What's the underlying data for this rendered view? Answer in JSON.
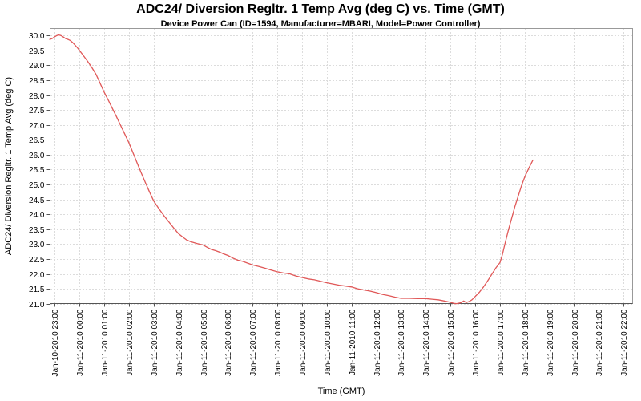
{
  "chart": {
    "title": "ADC24/ Diversion Regltr. 1 Temp Avg (deg C) vs. Time (GMT)",
    "subtitle": "Device Power Can (ID=1594, Manufacturer=MBARI, Model=Power Controller)",
    "y_axis_label": "ADC24/ Diversion Regltr. 1 Temp Avg (deg C)",
    "x_axis_label": "Time (GMT)"
  },
  "chart_data": {
    "type": "line",
    "title": "ADC24/ Diversion Regltr. 1 Temp Avg (deg C) vs. Time (GMT)",
    "subtitle": "Device Power Can (ID=1594, Manufacturer=MBARI, Model=Power Controller)",
    "xlabel": "Time (GMT)",
    "ylabel": "ADC24/ Diversion Regltr. 1 Temp Avg (deg C)",
    "ylim": [
      21.0,
      30.0
    ],
    "y_tick_step": 0.5,
    "y_tick_labels": [
      "21.0",
      "21.5",
      "22.0",
      "22.5",
      "23.0",
      "23.5",
      "24.0",
      "24.5",
      "25.0",
      "25.5",
      "26.0",
      "26.5",
      "27.0",
      "27.5",
      "28.0",
      "28.5",
      "29.0",
      "29.5",
      "30.0"
    ],
    "x_tick_labels": [
      "Jan-10-2010 23:00",
      "Jan-11-2010 00:00",
      "Jan-11-2010 01:00",
      "Jan-11-2010 02:00",
      "Jan-11-2010 03:00",
      "Jan-11-2010 04:00",
      "Jan-11-2010 05:00",
      "Jan-11-2010 06:00",
      "Jan-11-2010 07:00",
      "Jan-11-2010 08:00",
      "Jan-11-2010 09:00",
      "Jan-11-2010 10:00",
      "Jan-11-2010 11:00",
      "Jan-11-2010 12:00",
      "Jan-11-2010 13:00",
      "Jan-11-2010 14:00",
      "Jan-11-2010 15:00",
      "Jan-11-2010 16:00",
      "Jan-11-2010 17:00",
      "Jan-11-2010 18:00",
      "Jan-11-2010 19:00",
      "Jan-11-2010 20:00",
      "Jan-11-2010 21:00",
      "Jan-11-2010 22:00"
    ],
    "grid": true,
    "legend": "none",
    "line_color": "#e05858",
    "grid_color": "#dcdcdc",
    "border_color": "#999999",
    "axis_color": "#555555",
    "series": [
      {
        "name": "ADC24/ Diversion Regltr. 1 Temp Avg (deg C)",
        "x_unit": "minutes after Jan-10-2010 23:00 GMT",
        "points": [
          [
            -12,
            29.87
          ],
          [
            -6,
            29.9
          ],
          [
            0,
            29.96
          ],
          [
            5,
            30.0
          ],
          [
            10,
            30.02
          ],
          [
            15,
            30.0
          ],
          [
            20,
            29.96
          ],
          [
            26,
            29.9
          ],
          [
            32,
            29.87
          ],
          [
            38,
            29.83
          ],
          [
            44,
            29.76
          ],
          [
            50,
            29.67
          ],
          [
            55,
            29.59
          ],
          [
            60,
            29.5
          ],
          [
            70,
            29.32
          ],
          [
            80,
            29.13
          ],
          [
            90,
            28.93
          ],
          [
            100,
            28.7
          ],
          [
            110,
            28.4
          ],
          [
            120,
            28.1
          ],
          [
            130,
            27.83
          ],
          [
            140,
            27.55
          ],
          [
            150,
            27.27
          ],
          [
            160,
            26.98
          ],
          [
            170,
            26.69
          ],
          [
            180,
            26.4
          ],
          [
            190,
            26.06
          ],
          [
            200,
            25.72
          ],
          [
            210,
            25.39
          ],
          [
            220,
            25.06
          ],
          [
            230,
            24.75
          ],
          [
            240,
            24.45
          ],
          [
            252,
            24.2
          ],
          [
            264,
            23.97
          ],
          [
            276,
            23.76
          ],
          [
            288,
            23.55
          ],
          [
            300,
            23.35
          ],
          [
            310,
            23.24
          ],
          [
            320,
            23.14
          ],
          [
            330,
            23.08
          ],
          [
            345,
            23.02
          ],
          [
            360,
            22.97
          ],
          [
            370,
            22.89
          ],
          [
            380,
            22.82
          ],
          [
            390,
            22.78
          ],
          [
            400,
            22.73
          ],
          [
            410,
            22.67
          ],
          [
            420,
            22.62
          ],
          [
            432,
            22.53
          ],
          [
            444,
            22.46
          ],
          [
            456,
            22.42
          ],
          [
            468,
            22.36
          ],
          [
            480,
            22.3
          ],
          [
            495,
            22.25
          ],
          [
            510,
            22.19
          ],
          [
            525,
            22.13
          ],
          [
            540,
            22.07
          ],
          [
            555,
            22.03
          ],
          [
            570,
            22.0
          ],
          [
            585,
            21.93
          ],
          [
            600,
            21.88
          ],
          [
            615,
            21.83
          ],
          [
            630,
            21.8
          ],
          [
            645,
            21.75
          ],
          [
            660,
            21.7
          ],
          [
            675,
            21.66
          ],
          [
            690,
            21.62
          ],
          [
            705,
            21.59
          ],
          [
            720,
            21.56
          ],
          [
            735,
            21.5
          ],
          [
            750,
            21.46
          ],
          [
            765,
            21.42
          ],
          [
            780,
            21.37
          ],
          [
            795,
            21.31
          ],
          [
            810,
            21.27
          ],
          [
            825,
            21.22
          ],
          [
            840,
            21.18
          ],
          [
            860,
            21.18
          ],
          [
            880,
            21.17
          ],
          [
            900,
            21.17
          ],
          [
            915,
            21.15
          ],
          [
            930,
            21.13
          ],
          [
            945,
            21.09
          ],
          [
            958,
            21.05
          ],
          [
            968,
            21.01
          ],
          [
            975,
            21.0
          ],
          [
            985,
            21.03
          ],
          [
            992,
            21.09
          ],
          [
            998,
            21.04
          ],
          [
            1005,
            21.07
          ],
          [
            1012,
            21.13
          ],
          [
            1020,
            21.24
          ],
          [
            1030,
            21.38
          ],
          [
            1040,
            21.56
          ],
          [
            1050,
            21.76
          ],
          [
            1060,
            21.98
          ],
          [
            1070,
            22.2
          ],
          [
            1080,
            22.38
          ],
          [
            1086,
            22.65
          ],
          [
            1092,
            23.0
          ],
          [
            1100,
            23.45
          ],
          [
            1108,
            23.85
          ],
          [
            1116,
            24.25
          ],
          [
            1124,
            24.6
          ],
          [
            1132,
            24.95
          ],
          [
            1140,
            25.25
          ],
          [
            1150,
            25.55
          ],
          [
            1160,
            25.82
          ]
        ]
      }
    ]
  }
}
